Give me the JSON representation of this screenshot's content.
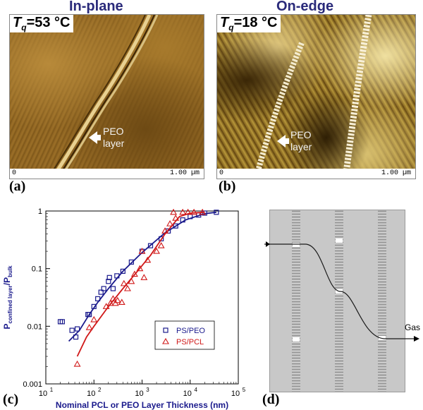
{
  "figure": {
    "panel_a": {
      "title": "In-plane",
      "tq_label": "T",
      "tq_sub": "q",
      "tq_value": "=53 °C",
      "scale_zero": "0",
      "scale_len": "1.00 µm",
      "annotation_line1": "PEO",
      "annotation_line2": "layer",
      "panel_label": "(a)"
    },
    "panel_b": {
      "title": "On-edge",
      "tq_label": "T",
      "tq_sub": "q",
      "tq_value": "=18 °C",
      "scale_zero": "0",
      "scale_len": "1.00 µm",
      "annotation_line1": "PEO",
      "annotation_line2": "layer",
      "panel_label": "(b)"
    },
    "panel_c": {
      "panel_label": "(c)"
    },
    "panel_d": {
      "panel_label": "(d)",
      "gas_label": "Gas"
    }
  },
  "chart_data": {
    "type": "scatter",
    "xlabel": "Nominal PCL or PEO Layer Thickness (nm)",
    "ylabel_main": "P",
    "ylabel_sub1": "confined layer",
    "ylabel_mid": "/P",
    "ylabel_sub2": "bulk",
    "xscale": "log",
    "yscale": "log",
    "xlim": [
      10,
      100000
    ],
    "ylim": [
      0.001,
      1
    ],
    "x_ticks": [
      {
        "v": 10,
        "base": "10",
        "exp": "1"
      },
      {
        "v": 100,
        "base": "10",
        "exp": "2"
      },
      {
        "v": 1000,
        "base": "10",
        "exp": "3"
      },
      {
        "v": 10000,
        "base": "10",
        "exp": "4"
      },
      {
        "v": 100000,
        "base": "10",
        "exp": "5"
      }
    ],
    "y_ticks": [
      {
        "v": 0.001,
        "t": "0.001"
      },
      {
        "v": 0.01,
        "t": "0.01"
      },
      {
        "v": 0.1,
        "t": "0.1"
      },
      {
        "v": 1,
        "t": "1"
      }
    ],
    "legend_position": "bottom-right",
    "series": [
      {
        "name": "PS/PEO",
        "color": "#1a1a8c",
        "marker": "square",
        "points": [
          [
            20,
            0.012
          ],
          [
            22,
            0.012
          ],
          [
            35,
            0.0085
          ],
          [
            42,
            0.0065
          ],
          [
            45,
            0.009
          ],
          [
            75,
            0.016
          ],
          [
            80,
            0.016
          ],
          [
            100,
            0.022
          ],
          [
            120,
            0.03
          ],
          [
            140,
            0.039
          ],
          [
            160,
            0.045
          ],
          [
            200,
            0.06
          ],
          [
            210,
            0.07
          ],
          [
            250,
            0.045
          ],
          [
            300,
            0.075
          ],
          [
            400,
            0.09
          ],
          [
            600,
            0.13
          ],
          [
            1000,
            0.2
          ],
          [
            1500,
            0.25
          ],
          [
            2500,
            0.33
          ],
          [
            3500,
            0.45
          ],
          [
            5000,
            0.55
          ],
          [
            7000,
            0.7
          ],
          [
            10000,
            0.8
          ],
          [
            15000,
            0.85
          ],
          [
            20000,
            0.92
          ],
          [
            35000,
            0.95
          ]
        ],
        "fit": [
          [
            30,
            0.0055
          ],
          [
            50,
            0.0085
          ],
          [
            80,
            0.016
          ],
          [
            120,
            0.026
          ],
          [
            200,
            0.045
          ],
          [
            400,
            0.09
          ],
          [
            1000,
            0.19
          ],
          [
            3000,
            0.42
          ],
          [
            8000,
            0.7
          ],
          [
            20000,
            0.9
          ],
          [
            35000,
            0.95
          ]
        ]
      },
      {
        "name": "PS/PCL",
        "color": "#d01818",
        "marker": "triangle",
        "points": [
          [
            45,
            0.0022
          ],
          [
            80,
            0.0095
          ],
          [
            100,
            0.013
          ],
          [
            180,
            0.022
          ],
          [
            220,
            0.025
          ],
          [
            250,
            0.03
          ],
          [
            280,
            0.025
          ],
          [
            310,
            0.028
          ],
          [
            380,
            0.026
          ],
          [
            420,
            0.055
          ],
          [
            500,
            0.045
          ],
          [
            600,
            0.06
          ],
          [
            700,
            0.08
          ],
          [
            900,
            0.1
          ],
          [
            1000,
            0.2
          ],
          [
            1100,
            0.07
          ],
          [
            1300,
            0.14
          ],
          [
            2000,
            0.2
          ],
          [
            2500,
            0.25
          ],
          [
            3000,
            0.45
          ],
          [
            3800,
            0.6
          ],
          [
            4500,
            0.95
          ],
          [
            5000,
            0.75
          ],
          [
            7000,
            0.95
          ],
          [
            9000,
            0.95
          ],
          [
            12000,
            0.95
          ],
          [
            18000,
            0.95
          ]
        ],
        "fit": [
          [
            45,
            0.003
          ],
          [
            70,
            0.0065
          ],
          [
            100,
            0.01
          ],
          [
            200,
            0.022
          ],
          [
            400,
            0.045
          ],
          [
            800,
            0.09
          ],
          [
            1500,
            0.17
          ],
          [
            3000,
            0.4
          ],
          [
            6000,
            0.8
          ],
          [
            10000,
            0.92
          ],
          [
            20000,
            0.95
          ]
        ]
      }
    ]
  }
}
